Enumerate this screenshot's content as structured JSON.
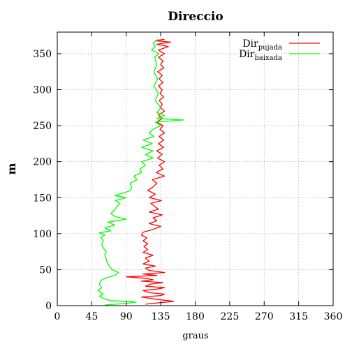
{
  "chart_data": {
    "type": "line",
    "title": "Direccio",
    "xlabel": "graus",
    "ylabel": "m",
    "xlim": [
      0,
      360
    ],
    "ylim": [
      0,
      380
    ],
    "xticks": [
      0,
      45,
      90,
      135,
      180,
      225,
      270,
      315,
      360
    ],
    "yticks": [
      0,
      50,
      100,
      150,
      200,
      250,
      300,
      350
    ],
    "grid": true,
    "legend_position": "top-right",
    "series": [
      {
        "name": "Dir pujada",
        "legend_main": "Dir",
        "legend_sub": "pujada",
        "color": "#ff0000",
        "points": [
          [
            115,
            2
          ],
          [
            152,
            6
          ],
          [
            128,
            9
          ],
          [
            110,
            12
          ],
          [
            135,
            14
          ],
          [
            140,
            16
          ],
          [
            120,
            18
          ],
          [
            112,
            21
          ],
          [
            130,
            23
          ],
          [
            140,
            25
          ],
          [
            115,
            27
          ],
          [
            122,
            30
          ],
          [
            138,
            32
          ],
          [
            110,
            34
          ],
          [
            125,
            36
          ],
          [
            115,
            38
          ],
          [
            90,
            40
          ],
          [
            130,
            42
          ],
          [
            112,
            44
          ],
          [
            140,
            46
          ],
          [
            120,
            49
          ],
          [
            115,
            52
          ],
          [
            128,
            55
          ],
          [
            112,
            58
          ],
          [
            120,
            62
          ],
          [
            115,
            66
          ],
          [
            125,
            70
          ],
          [
            112,
            74
          ],
          [
            118,
            78
          ],
          [
            113,
            82
          ],
          [
            118,
            86
          ],
          [
            112,
            90
          ],
          [
            117,
            94
          ],
          [
            110,
            98
          ],
          [
            112,
            102
          ],
          [
            125,
            106
          ],
          [
            135,
            110
          ],
          [
            120,
            114
          ],
          [
            130,
            118
          ],
          [
            125,
            122
          ],
          [
            137,
            126
          ],
          [
            120,
            130
          ],
          [
            132,
            134
          ],
          [
            127,
            138
          ],
          [
            122,
            142
          ],
          [
            136,
            146
          ],
          [
            120,
            150
          ],
          [
            128,
            155
          ],
          [
            118,
            160
          ],
          [
            125,
            165
          ],
          [
            130,
            170
          ],
          [
            124,
            175
          ],
          [
            140,
            180
          ],
          [
            129,
            185
          ],
          [
            138,
            190
          ],
          [
            133,
            195
          ],
          [
            140,
            200
          ],
          [
            131,
            205
          ],
          [
            137,
            210
          ],
          [
            130,
            215
          ],
          [
            139,
            220
          ],
          [
            132,
            225
          ],
          [
            139,
            230
          ],
          [
            133,
            235
          ],
          [
            140,
            240
          ],
          [
            134,
            245
          ],
          [
            138,
            250
          ],
          [
            130,
            255
          ],
          [
            137,
            260
          ],
          [
            132,
            265
          ],
          [
            140,
            270
          ],
          [
            135,
            275
          ],
          [
            137,
            280
          ],
          [
            133,
            285
          ],
          [
            139,
            290
          ],
          [
            134,
            295
          ],
          [
            137,
            300
          ],
          [
            132,
            305
          ],
          [
            138,
            310
          ],
          [
            133,
            315
          ],
          [
            137,
            320
          ],
          [
            131,
            325
          ],
          [
            139,
            330
          ],
          [
            135,
            335
          ],
          [
            138,
            340
          ],
          [
            132,
            345
          ],
          [
            140,
            350
          ],
          [
            132,
            355
          ],
          [
            145,
            360
          ],
          [
            130,
            363
          ],
          [
            148,
            366
          ],
          [
            128,
            368
          ],
          [
            140,
            370
          ]
        ]
      },
      {
        "name": "Dir baixada",
        "legend_main": "Dir",
        "legend_sub": "baixada",
        "color": "#00ff00",
        "points": [
          [
            62,
            1
          ],
          [
            90,
            3
          ],
          [
            103,
            5
          ],
          [
            70,
            7
          ],
          [
            60,
            10
          ],
          [
            55,
            13
          ],
          [
            60,
            16
          ],
          [
            53,
            21
          ],
          [
            58,
            25
          ],
          [
            55,
            30
          ],
          [
            57,
            35
          ],
          [
            62,
            38
          ],
          [
            75,
            42
          ],
          [
            80,
            46
          ],
          [
            72,
            50
          ],
          [
            68,
            55
          ],
          [
            65,
            60
          ],
          [
            64,
            65
          ],
          [
            62,
            70
          ],
          [
            64,
            75
          ],
          [
            60,
            80
          ],
          [
            58,
            85
          ],
          [
            60,
            90
          ],
          [
            57,
            95
          ],
          [
            62,
            98
          ],
          [
            55,
            101
          ],
          [
            70,
            104
          ],
          [
            62,
            108
          ],
          [
            75,
            112
          ],
          [
            66,
            116
          ],
          [
            90,
            120
          ],
          [
            75,
            124
          ],
          [
            70,
            128
          ],
          [
            75,
            133
          ],
          [
            78,
            138
          ],
          [
            82,
            142
          ],
          [
            76,
            146
          ],
          [
            90,
            150
          ],
          [
            75,
            153
          ],
          [
            88,
            157
          ],
          [
            96,
            160
          ],
          [
            97,
            165
          ],
          [
            95,
            170
          ],
          [
            104,
            175
          ],
          [
            100,
            180
          ],
          [
            110,
            185
          ],
          [
            108,
            190
          ],
          [
            115,
            195
          ],
          [
            110,
            200
          ],
          [
            125,
            205
          ],
          [
            115,
            210
          ],
          [
            125,
            215
          ],
          [
            110,
            220
          ],
          [
            124,
            225
          ],
          [
            112,
            230
          ],
          [
            126,
            235
          ],
          [
            120,
            240
          ],
          [
            125,
            245
          ],
          [
            135,
            250
          ],
          [
            128,
            255
          ],
          [
            165,
            258
          ],
          [
            130,
            260
          ],
          [
            140,
            264
          ],
          [
            130,
            268
          ],
          [
            135,
            275
          ],
          [
            128,
            285
          ],
          [
            132,
            295
          ],
          [
            126,
            305
          ],
          [
            131,
            315
          ],
          [
            126,
            325
          ],
          [
            130,
            335
          ],
          [
            127,
            345
          ],
          [
            133,
            350
          ],
          [
            123,
            355
          ],
          [
            128,
            360
          ],
          [
            125,
            365
          ],
          [
            132,
            370
          ]
        ]
      }
    ]
  }
}
